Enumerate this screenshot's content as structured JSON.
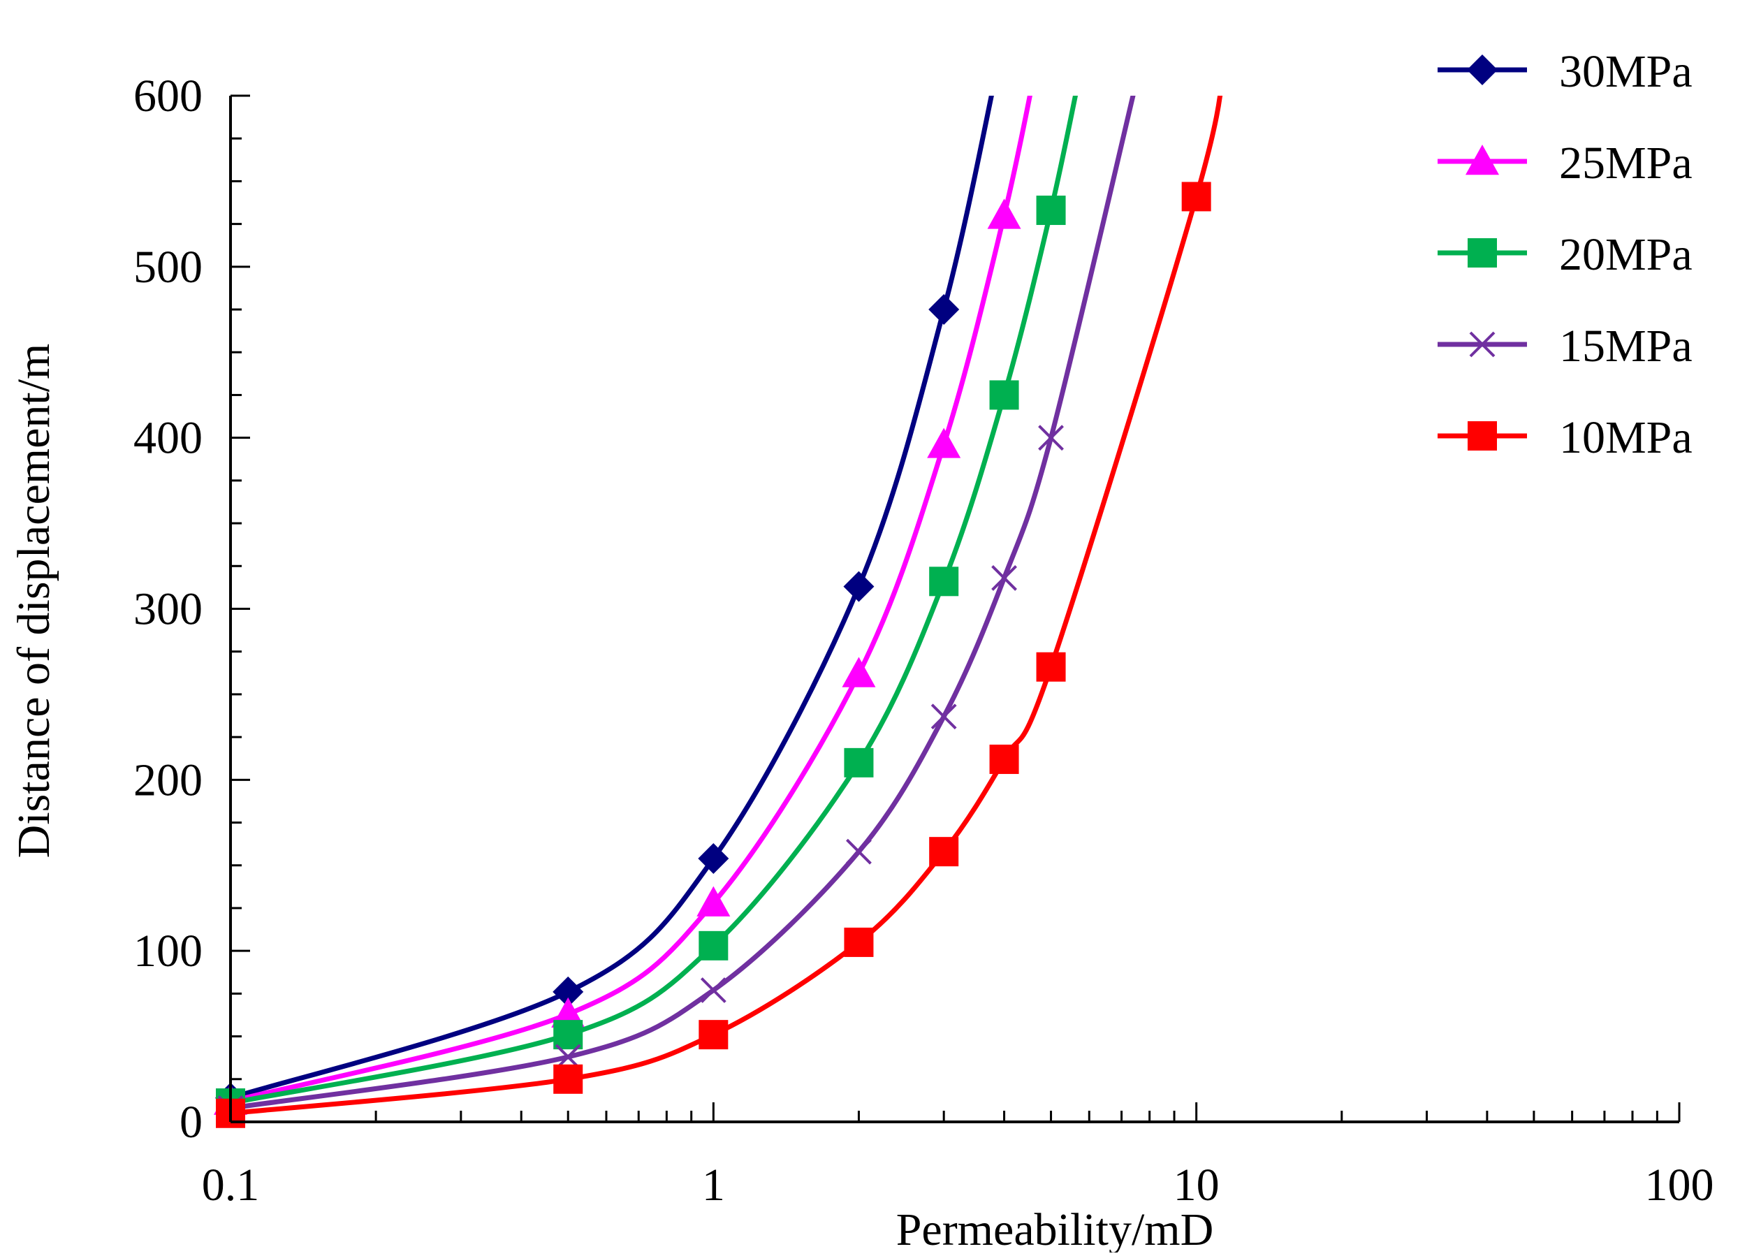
{
  "chart_data": {
    "type": "line",
    "title": "",
    "xlabel": "Permeability/mD",
    "ylabel": "Distance of displacement/m",
    "xscale": "log",
    "xlim": [
      0.1,
      100
    ],
    "ylim": [
      0,
      600
    ],
    "x_ticks": [
      "0.1",
      "1",
      "10",
      "100"
    ],
    "y_ticks": [
      "0",
      "100",
      "200",
      "300",
      "400",
      "500",
      "600"
    ],
    "legend_position": "top-right",
    "grid": false,
    "series": [
      {
        "name": "30MPa",
        "color": "#000080",
        "marker": "diamond",
        "x": [
          0.1,
          0.5,
          1,
          2,
          3
        ],
        "y": [
          14,
          76,
          154,
          313,
          475
        ]
      },
      {
        "name": "25MPa",
        "color": "#FF00FF",
        "marker": "triangle",
        "x": [
          0.1,
          0.5,
          1,
          2,
          3,
          4
        ],
        "y": [
          12,
          63,
          128,
          262,
          396,
          530
        ]
      },
      {
        "name": "20MPa",
        "color": "#00B050",
        "marker": "square",
        "x": [
          0.1,
          0.5,
          1,
          2,
          3,
          4,
          5
        ],
        "y": [
          11,
          51,
          103,
          210,
          316,
          425,
          533
        ]
      },
      {
        "name": "15MPa",
        "color": "#7030A0",
        "marker": "x",
        "x": [
          0.1,
          0.5,
          1,
          2,
          3,
          4,
          5
        ],
        "y": [
          8,
          38,
          77,
          158,
          237,
          318,
          400
        ]
      },
      {
        "name": "10MPa",
        "color": "#FF0000",
        "marker": "square",
        "x": [
          0.1,
          0.5,
          1,
          2,
          3,
          4,
          5,
          10
        ],
        "y": [
          5,
          25,
          51,
          105,
          158,
          212,
          266,
          541
        ]
      }
    ]
  }
}
